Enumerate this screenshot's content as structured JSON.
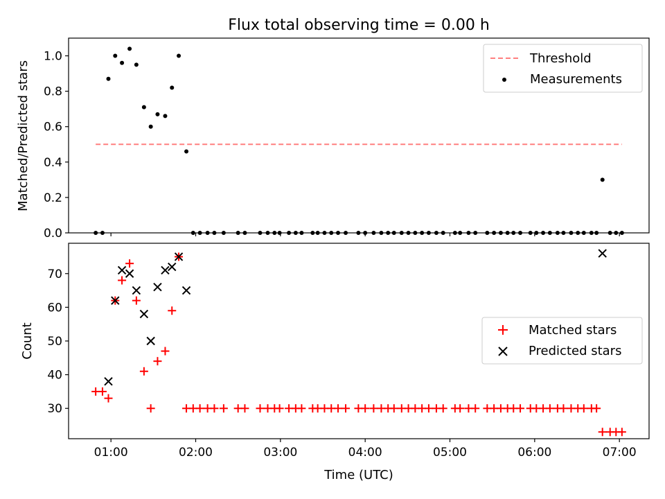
{
  "chart_data": {
    "title": "Flux total observing time = 0.00 h",
    "xlabel": "Time (UTC)",
    "x_unit": "hours UTC",
    "xlim": [
      0.5,
      7.35
    ],
    "xticks": [
      {
        "value": 1,
        "label": "01:00"
      },
      {
        "value": 2,
        "label": "02:00"
      },
      {
        "value": 3,
        "label": "03:00"
      },
      {
        "value": 4,
        "label": "04:00"
      },
      {
        "value": 5,
        "label": "05:00"
      },
      {
        "value": 6,
        "label": "06:00"
      },
      {
        "value": 7,
        "label": "07:00"
      }
    ],
    "panels": [
      {
        "type": "scatter",
        "ylabel": "Matched/Predicted stars",
        "ylim": [
          0,
          1.1
        ],
        "yticks": [
          "0.0",
          "0.2",
          "0.4",
          "0.6",
          "0.8",
          "1.0"
        ],
        "legend_position": "top-right",
        "legend": [
          {
            "label": "Threshold",
            "style": "dashed-line",
            "color": "#ff7f7f"
          },
          {
            "label": "Measurements",
            "style": "dot",
            "color": "#000000"
          }
        ],
        "threshold": {
          "name": "Threshold",
          "y": 0.5,
          "x_start": 0.82,
          "x_end": 7.03
        },
        "measurements": {
          "name": "Measurements",
          "points": [
            [
              0.82,
              0
            ],
            [
              0.9,
              0
            ],
            [
              0.97,
              0.87
            ],
            [
              1.05,
              1.0
            ],
            [
              1.13,
              0.96
            ],
            [
              1.22,
              1.04
            ],
            [
              1.3,
              0.95
            ],
            [
              1.39,
              0.71
            ],
            [
              1.47,
              0.6
            ],
            [
              1.55,
              0.67
            ],
            [
              1.64,
              0.66
            ],
            [
              1.72,
              0.82
            ],
            [
              1.8,
              1.0
            ],
            [
              1.89,
              0.46
            ],
            [
              1.97,
              0
            ],
            [
              2.05,
              0
            ],
            [
              2.14,
              0
            ],
            [
              2.22,
              0
            ],
            [
              2.33,
              0
            ],
            [
              2.5,
              0
            ],
            [
              2.58,
              0
            ],
            [
              2.76,
              0
            ],
            [
              2.85,
              0
            ],
            [
              2.93,
              0
            ],
            [
              2.99,
              0
            ],
            [
              3.1,
              0
            ],
            [
              3.18,
              0
            ],
            [
              3.25,
              0
            ],
            [
              3.38,
              0
            ],
            [
              3.44,
              0
            ],
            [
              3.52,
              0
            ],
            [
              3.6,
              0
            ],
            [
              3.68,
              0
            ],
            [
              3.77,
              0
            ],
            [
              3.92,
              0
            ],
            [
              4.0,
              0
            ],
            [
              4.1,
              0
            ],
            [
              4.19,
              0
            ],
            [
              4.27,
              0
            ],
            [
              4.34,
              0
            ],
            [
              4.43,
              0
            ],
            [
              4.51,
              0
            ],
            [
              4.59,
              0
            ],
            [
              4.67,
              0
            ],
            [
              4.75,
              0
            ],
            [
              4.84,
              0
            ],
            [
              4.92,
              0
            ],
            [
              5.06,
              0
            ],
            [
              5.12,
              0
            ],
            [
              5.22,
              0
            ],
            [
              5.3,
              0
            ],
            [
              5.44,
              0
            ],
            [
              5.52,
              0
            ],
            [
              5.6,
              0
            ],
            [
              5.68,
              0
            ],
            [
              5.75,
              0
            ],
            [
              5.83,
              0
            ],
            [
              5.95,
              0
            ],
            [
              6.02,
              0
            ],
            [
              6.1,
              0
            ],
            [
              6.18,
              0
            ],
            [
              6.27,
              0
            ],
            [
              6.34,
              0
            ],
            [
              6.43,
              0
            ],
            [
              6.51,
              0
            ],
            [
              6.58,
              0
            ],
            [
              6.67,
              0
            ],
            [
              6.73,
              0
            ],
            [
              6.8,
              0.3
            ],
            [
              6.89,
              0
            ],
            [
              6.96,
              0
            ],
            [
              7.03,
              0
            ]
          ]
        }
      },
      {
        "type": "scatter",
        "ylabel": "Count",
        "ylim": [
          21,
          79
        ],
        "yticks": [
          "30",
          "40",
          "50",
          "60",
          "70"
        ],
        "legend_position": "center-right",
        "legend": [
          {
            "label": "Matched stars",
            "style": "plus",
            "color": "#ff0000"
          },
          {
            "label": "Predicted stars",
            "style": "cross",
            "color": "#000000"
          }
        ],
        "matched": {
          "name": "Matched stars",
          "points": [
            [
              0.82,
              35
            ],
            [
              0.9,
              35
            ],
            [
              0.97,
              33
            ],
            [
              1.05,
              62
            ],
            [
              1.13,
              68
            ],
            [
              1.22,
              73
            ],
            [
              1.3,
              62
            ],
            [
              1.39,
              41
            ],
            [
              1.47,
              30
            ],
            [
              1.55,
              44
            ],
            [
              1.64,
              47
            ],
            [
              1.72,
              59
            ],
            [
              1.8,
              75
            ],
            [
              1.89,
              30
            ],
            [
              1.97,
              30
            ],
            [
              2.05,
              30
            ],
            [
              2.14,
              30
            ],
            [
              2.22,
              30
            ],
            [
              2.33,
              30
            ],
            [
              2.5,
              30
            ],
            [
              2.58,
              30
            ],
            [
              2.76,
              30
            ],
            [
              2.85,
              30
            ],
            [
              2.93,
              30
            ],
            [
              2.99,
              30
            ],
            [
              3.1,
              30
            ],
            [
              3.18,
              30
            ],
            [
              3.25,
              30
            ],
            [
              3.38,
              30
            ],
            [
              3.44,
              30
            ],
            [
              3.52,
              30
            ],
            [
              3.6,
              30
            ],
            [
              3.68,
              30
            ],
            [
              3.77,
              30
            ],
            [
              3.92,
              30
            ],
            [
              4.0,
              30
            ],
            [
              4.1,
              30
            ],
            [
              4.19,
              30
            ],
            [
              4.27,
              30
            ],
            [
              4.34,
              30
            ],
            [
              4.43,
              30
            ],
            [
              4.51,
              30
            ],
            [
              4.59,
              30
            ],
            [
              4.67,
              30
            ],
            [
              4.75,
              30
            ],
            [
              4.84,
              30
            ],
            [
              4.92,
              30
            ],
            [
              5.06,
              30
            ],
            [
              5.12,
              30
            ],
            [
              5.22,
              30
            ],
            [
              5.3,
              30
            ],
            [
              5.44,
              30
            ],
            [
              5.52,
              30
            ],
            [
              5.6,
              30
            ],
            [
              5.68,
              30
            ],
            [
              5.75,
              30
            ],
            [
              5.83,
              30
            ],
            [
              5.95,
              30
            ],
            [
              6.02,
              30
            ],
            [
              6.1,
              30
            ],
            [
              6.18,
              30
            ],
            [
              6.27,
              30
            ],
            [
              6.34,
              30
            ],
            [
              6.43,
              30
            ],
            [
              6.51,
              30
            ],
            [
              6.58,
              30
            ],
            [
              6.67,
              30
            ],
            [
              6.73,
              30
            ],
            [
              6.8,
              23
            ],
            [
              6.89,
              23
            ],
            [
              6.96,
              23
            ],
            [
              7.03,
              23
            ]
          ]
        },
        "predicted": {
          "name": "Predicted stars",
          "points": [
            [
              0.97,
              38
            ],
            [
              1.05,
              62
            ],
            [
              1.13,
              71
            ],
            [
              1.22,
              70
            ],
            [
              1.3,
              65
            ],
            [
              1.39,
              58
            ],
            [
              1.47,
              50
            ],
            [
              1.55,
              66
            ],
            [
              1.64,
              71
            ],
            [
              1.72,
              72
            ],
            [
              1.8,
              75
            ],
            [
              1.89,
              65
            ],
            [
              6.8,
              76
            ]
          ]
        }
      }
    ]
  }
}
